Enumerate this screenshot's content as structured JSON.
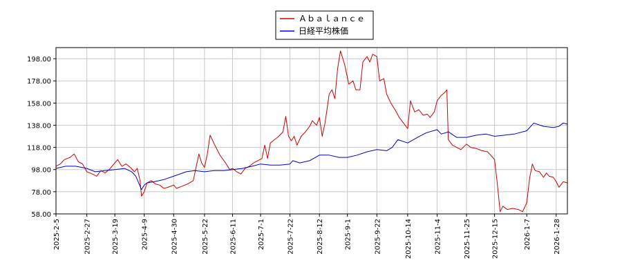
{
  "chart_data": {
    "type": "line",
    "title": "",
    "xlabel": "",
    "ylabel": "",
    "ylim": [
      58,
      208
    ],
    "y_ticks": [
      "58.00",
      "78.00",
      "98.00",
      "118.00",
      "138.00",
      "158.00",
      "178.00",
      "198.00"
    ],
    "x_range": [
      "2025-02-05",
      "2026-02-05"
    ],
    "x_ticks": [
      {
        "date": "2025-02-05",
        "label": "2025-2-5"
      },
      {
        "date": "2025-02-27",
        "label": "2025-2-27"
      },
      {
        "date": "2025-03-19",
        "label": "2025-3-19"
      },
      {
        "date": "2025-04-09",
        "label": "2025-4-9"
      },
      {
        "date": "2025-04-30",
        "label": "2025-4-30"
      },
      {
        "date": "2025-05-22",
        "label": "2025-5-22"
      },
      {
        "date": "2025-06-11",
        "label": "2025-6-11"
      },
      {
        "date": "2025-07-01",
        "label": "2025-7-1"
      },
      {
        "date": "2025-07-22",
        "label": "2025-7-22"
      },
      {
        "date": "2025-08-12",
        "label": "2025-8-12"
      },
      {
        "date": "2025-09-01",
        "label": "2025-9-1"
      },
      {
        "date": "2025-09-22",
        "label": "2025-9-22"
      },
      {
        "date": "2025-10-14",
        "label": "2025-10-14"
      },
      {
        "date": "2025-11-04",
        "label": "2025-11-4"
      },
      {
        "date": "2025-11-25",
        "label": "2025-11-25"
      },
      {
        "date": "2025-12-15",
        "label": "2025-12-15"
      },
      {
        "date": "2026-01-07",
        "label": "2026-1-7"
      },
      {
        "date": "2026-01-28",
        "label": "2026-1-28"
      }
    ],
    "grid": true,
    "legend_position": "top-center",
    "series": [
      {
        "name": "Ａｂａｌａｎｃｅ",
        "color": "#cc0000",
        "points": [
          [
            "2025-02-05",
            101
          ],
          [
            "2025-02-08",
            103
          ],
          [
            "2025-02-11",
            107
          ],
          [
            "2025-02-15",
            109
          ],
          [
            "2025-02-18",
            112
          ],
          [
            "2025-02-21",
            105
          ],
          [
            "2025-02-24",
            103
          ],
          [
            "2025-02-27",
            96
          ],
          [
            "2025-03-03",
            94
          ],
          [
            "2025-03-06",
            92
          ],
          [
            "2025-03-09",
            97
          ],
          [
            "2025-03-12",
            95
          ],
          [
            "2025-03-15",
            98
          ],
          [
            "2025-03-19",
            104
          ],
          [
            "2025-03-21",
            107
          ],
          [
            "2025-03-24",
            101
          ],
          [
            "2025-03-27",
            103
          ],
          [
            "2025-03-30",
            100
          ],
          [
            "2025-04-02",
            96
          ],
          [
            "2025-04-04",
            99
          ],
          [
            "2025-04-06",
            88
          ],
          [
            "2025-04-07",
            74
          ],
          [
            "2025-04-09",
            78
          ],
          [
            "2025-04-11",
            86
          ],
          [
            "2025-04-14",
            88
          ],
          [
            "2025-04-17",
            85
          ],
          [
            "2025-04-20",
            84
          ],
          [
            "2025-04-23",
            81
          ],
          [
            "2025-04-26",
            82
          ],
          [
            "2025-04-30",
            84
          ],
          [
            "2025-05-02",
            81
          ],
          [
            "2025-05-06",
            83
          ],
          [
            "2025-05-10",
            85
          ],
          [
            "2025-05-14",
            88
          ],
          [
            "2025-05-16",
            100
          ],
          [
            "2025-05-18",
            112
          ],
          [
            "2025-05-20",
            104
          ],
          [
            "2025-05-22",
            100
          ],
          [
            "2025-05-24",
            112
          ],
          [
            "2025-05-26",
            129
          ],
          [
            "2025-05-29",
            121
          ],
          [
            "2025-06-02",
            111
          ],
          [
            "2025-06-06",
            104
          ],
          [
            "2025-06-09",
            98
          ],
          [
            "2025-06-11",
            99
          ],
          [
            "2025-06-14",
            96
          ],
          [
            "2025-06-17",
            94
          ],
          [
            "2025-06-20",
            99
          ],
          [
            "2025-06-23",
            101
          ],
          [
            "2025-06-26",
            104
          ],
          [
            "2025-06-29",
            106
          ],
          [
            "2025-07-02",
            108
          ],
          [
            "2025-07-04",
            120
          ],
          [
            "2025-07-06",
            108
          ],
          [
            "2025-07-08",
            122
          ],
          [
            "2025-07-11",
            125
          ],
          [
            "2025-07-14",
            128
          ],
          [
            "2025-07-17",
            132
          ],
          [
            "2025-07-19",
            146
          ],
          [
            "2025-07-21",
            128
          ],
          [
            "2025-07-23",
            124
          ],
          [
            "2025-07-25",
            128
          ],
          [
            "2025-07-27",
            120
          ],
          [
            "2025-07-30",
            128
          ],
          [
            "2025-08-02",
            132
          ],
          [
            "2025-08-05",
            137
          ],
          [
            "2025-08-07",
            142
          ],
          [
            "2025-08-10",
            138
          ],
          [
            "2025-08-12",
            145
          ],
          [
            "2025-08-14",
            128
          ],
          [
            "2025-08-16",
            140
          ],
          [
            "2025-08-19",
            166
          ],
          [
            "2025-08-21",
            170
          ],
          [
            "2025-08-23",
            162
          ],
          [
            "2025-08-25",
            189
          ],
          [
            "2025-08-27",
            205
          ],
          [
            "2025-08-30",
            193
          ],
          [
            "2025-09-02",
            175
          ],
          [
            "2025-09-05",
            178
          ],
          [
            "2025-09-07",
            170
          ],
          [
            "2025-09-10",
            170
          ],
          [
            "2025-09-12",
            195
          ],
          [
            "2025-09-15",
            200
          ],
          [
            "2025-09-17",
            195
          ],
          [
            "2025-09-19",
            202
          ],
          [
            "2025-09-22",
            200
          ],
          [
            "2025-09-24",
            178
          ],
          [
            "2025-09-27",
            180
          ],
          [
            "2025-09-29",
            166
          ],
          [
            "2025-10-02",
            158
          ],
          [
            "2025-10-05",
            152
          ],
          [
            "2025-10-08",
            145
          ],
          [
            "2025-10-11",
            140
          ],
          [
            "2025-10-14",
            135
          ],
          [
            "2025-10-16",
            160
          ],
          [
            "2025-10-19",
            150
          ],
          [
            "2025-10-22",
            152
          ],
          [
            "2025-10-25",
            147
          ],
          [
            "2025-10-28",
            148
          ],
          [
            "2025-10-30",
            145
          ],
          [
            "2025-11-02",
            150
          ],
          [
            "2025-11-04",
            160
          ],
          [
            "2025-11-07",
            165
          ],
          [
            "2025-11-09",
            167
          ],
          [
            "2025-11-11",
            170
          ],
          [
            "2025-11-12",
            125
          ],
          [
            "2025-11-15",
            120
          ],
          [
            "2025-11-18",
            118
          ],
          [
            "2025-11-21",
            116
          ],
          [
            "2025-11-25",
            121
          ],
          [
            "2025-11-28",
            118
          ],
          [
            "2025-12-02",
            117
          ],
          [
            "2025-12-06",
            115
          ],
          [
            "2025-12-10",
            114
          ],
          [
            "2025-12-13",
            110
          ],
          [
            "2025-12-15",
            107
          ],
          [
            "2025-12-17",
            85
          ],
          [
            "2025-12-19",
            60
          ],
          [
            "2025-12-21",
            65
          ],
          [
            "2025-12-24",
            62
          ],
          [
            "2025-12-28",
            63
          ],
          [
            "2026-01-01",
            62
          ],
          [
            "2026-01-04",
            60
          ],
          [
            "2026-01-07",
            68
          ],
          [
            "2026-01-09",
            90
          ],
          [
            "2026-01-11",
            103
          ],
          [
            "2026-01-13",
            97
          ],
          [
            "2026-01-16",
            96
          ],
          [
            "2026-01-19",
            91
          ],
          [
            "2026-01-21",
            95
          ],
          [
            "2026-01-23",
            92
          ],
          [
            "2026-01-26",
            91
          ],
          [
            "2026-01-28",
            87
          ],
          [
            "2026-01-30",
            82
          ],
          [
            "2026-02-02",
            87
          ],
          [
            "2026-02-05",
            86
          ]
        ]
      },
      {
        "name": "日経平均株価",
        "color": "#0000cc",
        "points": [
          [
            "2025-02-05",
            99
          ],
          [
            "2025-02-12",
            101
          ],
          [
            "2025-02-19",
            101
          ],
          [
            "2025-02-27",
            99
          ],
          [
            "2025-03-05",
            96
          ],
          [
            "2025-03-12",
            97
          ],
          [
            "2025-03-19",
            98
          ],
          [
            "2025-03-26",
            99
          ],
          [
            "2025-03-31",
            96
          ],
          [
            "2025-04-03",
            92
          ],
          [
            "2025-04-07",
            80
          ],
          [
            "2025-04-09",
            84
          ],
          [
            "2025-04-11",
            86
          ],
          [
            "2025-04-16",
            87
          ],
          [
            "2025-04-23",
            89
          ],
          [
            "2025-04-30",
            92
          ],
          [
            "2025-05-09",
            96
          ],
          [
            "2025-05-15",
            97
          ],
          [
            "2025-05-22",
            96
          ],
          [
            "2025-05-29",
            97
          ],
          [
            "2025-06-05",
            97
          ],
          [
            "2025-06-11",
            98
          ],
          [
            "2025-06-18",
            99
          ],
          [
            "2025-06-25",
            101
          ],
          [
            "2025-07-01",
            103
          ],
          [
            "2025-07-08",
            102
          ],
          [
            "2025-07-15",
            102
          ],
          [
            "2025-07-22",
            103
          ],
          [
            "2025-07-24",
            106
          ],
          [
            "2025-07-29",
            104
          ],
          [
            "2025-08-05",
            106
          ],
          [
            "2025-08-12",
            111
          ],
          [
            "2025-08-19",
            111
          ],
          [
            "2025-08-26",
            109
          ],
          [
            "2025-09-01",
            109
          ],
          [
            "2025-09-08",
            111
          ],
          [
            "2025-09-15",
            114
          ],
          [
            "2025-09-22",
            116
          ],
          [
            "2025-09-29",
            115
          ],
          [
            "2025-10-03",
            118
          ],
          [
            "2025-10-07",
            125
          ],
          [
            "2025-10-14",
            122
          ],
          [
            "2025-10-21",
            127
          ],
          [
            "2025-10-27",
            131
          ],
          [
            "2025-11-04",
            134
          ],
          [
            "2025-11-07",
            130
          ],
          [
            "2025-11-12",
            132
          ],
          [
            "2025-11-18",
            127
          ],
          [
            "2025-11-25",
            127
          ],
          [
            "2025-12-02",
            129
          ],
          [
            "2025-12-09",
            130
          ],
          [
            "2025-12-15",
            128
          ],
          [
            "2025-12-22",
            129
          ],
          [
            "2025-12-29",
            130
          ],
          [
            "2026-01-07",
            133
          ],
          [
            "2026-01-12",
            140
          ],
          [
            "2026-01-19",
            137
          ],
          [
            "2026-01-26",
            136
          ],
          [
            "2026-01-30",
            137
          ],
          [
            "2026-02-02",
            140
          ],
          [
            "2026-02-05",
            139
          ]
        ]
      }
    ]
  }
}
